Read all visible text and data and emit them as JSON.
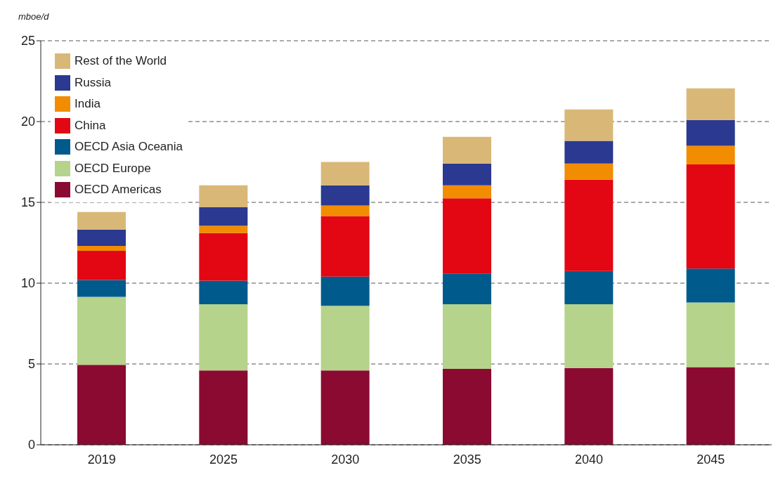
{
  "chart_data": {
    "type": "bar",
    "ylabel": "mboe/d",
    "stacked": true,
    "categories": [
      "2019",
      "2025",
      "2030",
      "2035",
      "2040",
      "2045"
    ],
    "series": [
      {
        "name": "OECD Americas",
        "color": "#8b0a32",
        "values": [
          4.95,
          4.6,
          4.6,
          4.7,
          4.75,
          4.8
        ]
      },
      {
        "name": "OECD Europe",
        "color": "#b5d38a",
        "values": [
          4.2,
          4.1,
          4.0,
          4.0,
          3.95,
          4.0
        ]
      },
      {
        "name": "OECD Asia Oceania",
        "color": "#005b8c",
        "values": [
          1.05,
          1.45,
          1.8,
          1.9,
          2.05,
          2.1
        ]
      },
      {
        "name": "China",
        "color": "#e30613",
        "values": [
          1.8,
          2.95,
          3.75,
          4.65,
          5.65,
          6.45
        ]
      },
      {
        "name": "India",
        "color": "#f28c00",
        "values": [
          0.3,
          0.45,
          0.65,
          0.8,
          1.0,
          1.15
        ]
      },
      {
        "name": "Russia",
        "color": "#2b3990",
        "values": [
          1.0,
          1.15,
          1.25,
          1.35,
          1.4,
          1.6
        ]
      },
      {
        "name": "Rest of the World",
        "color": "#d9b877",
        "values": [
          1.1,
          1.35,
          1.45,
          1.65,
          1.95,
          1.95
        ]
      }
    ],
    "ylim": [
      0,
      25
    ],
    "yticks": [
      0,
      5,
      10,
      15,
      20,
      25
    ],
    "grid": "y",
    "legend": "top left"
  }
}
